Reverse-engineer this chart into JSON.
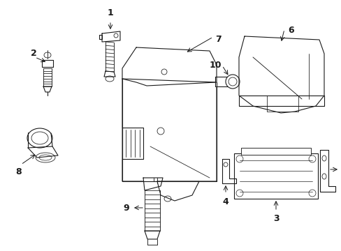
{
  "bg_color": "#ffffff",
  "line_color": "#1a1a1a",
  "line_width": 0.8,
  "label_fontsize": 8.5,
  "fig_width": 4.89,
  "fig_height": 3.6,
  "dpi": 100
}
